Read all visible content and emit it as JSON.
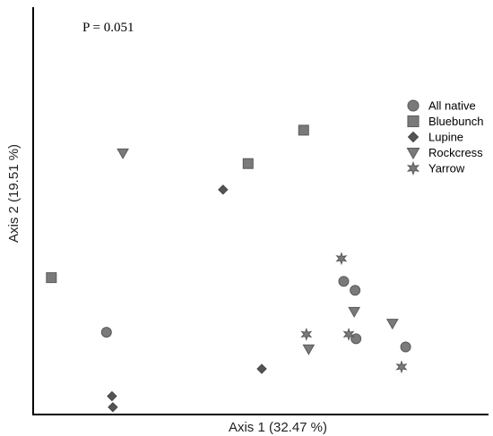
{
  "chart_data": {
    "type": "scatter",
    "annotation": "P = 0.051",
    "xlabel": "Axis 1 (32.47 %)",
    "ylabel": "Axis 2 (19.51 %)",
    "xlim": [
      0,
      100
    ],
    "ylim": [
      0,
      100
    ],
    "grid": false,
    "legend_position": "right",
    "series": [
      {
        "name": "All native",
        "marker": "circle",
        "points": [
          [
            16.1,
            20.2
          ],
          [
            68.2,
            32.7
          ],
          [
            70.7,
            30.5
          ],
          [
            70.9,
            18.6
          ],
          [
            81.8,
            16.6
          ]
        ]
      },
      {
        "name": "Bluebunch",
        "marker": "square",
        "points": [
          [
            4.0,
            33.6
          ],
          [
            47.2,
            61.6
          ],
          [
            59.4,
            69.8
          ]
        ]
      },
      {
        "name": "Lupine",
        "marker": "diamond",
        "points": [
          [
            41.7,
            55.2
          ],
          [
            50.2,
            11.2
          ],
          [
            17.3,
            4.5
          ],
          [
            17.5,
            1.8
          ]
        ]
      },
      {
        "name": "Rockcress",
        "marker": "triangle",
        "points": [
          [
            19.7,
            64.2
          ],
          [
            70.5,
            25.3
          ],
          [
            78.9,
            22.4
          ],
          [
            60.5,
            16.1
          ]
        ]
      },
      {
        "name": "Yarrow",
        "marker": "star",
        "points": [
          [
            67.7,
            38.3
          ],
          [
            60.0,
            19.7
          ],
          [
            69.3,
            19.7
          ],
          [
            80.9,
            11.7
          ]
        ]
      }
    ]
  }
}
